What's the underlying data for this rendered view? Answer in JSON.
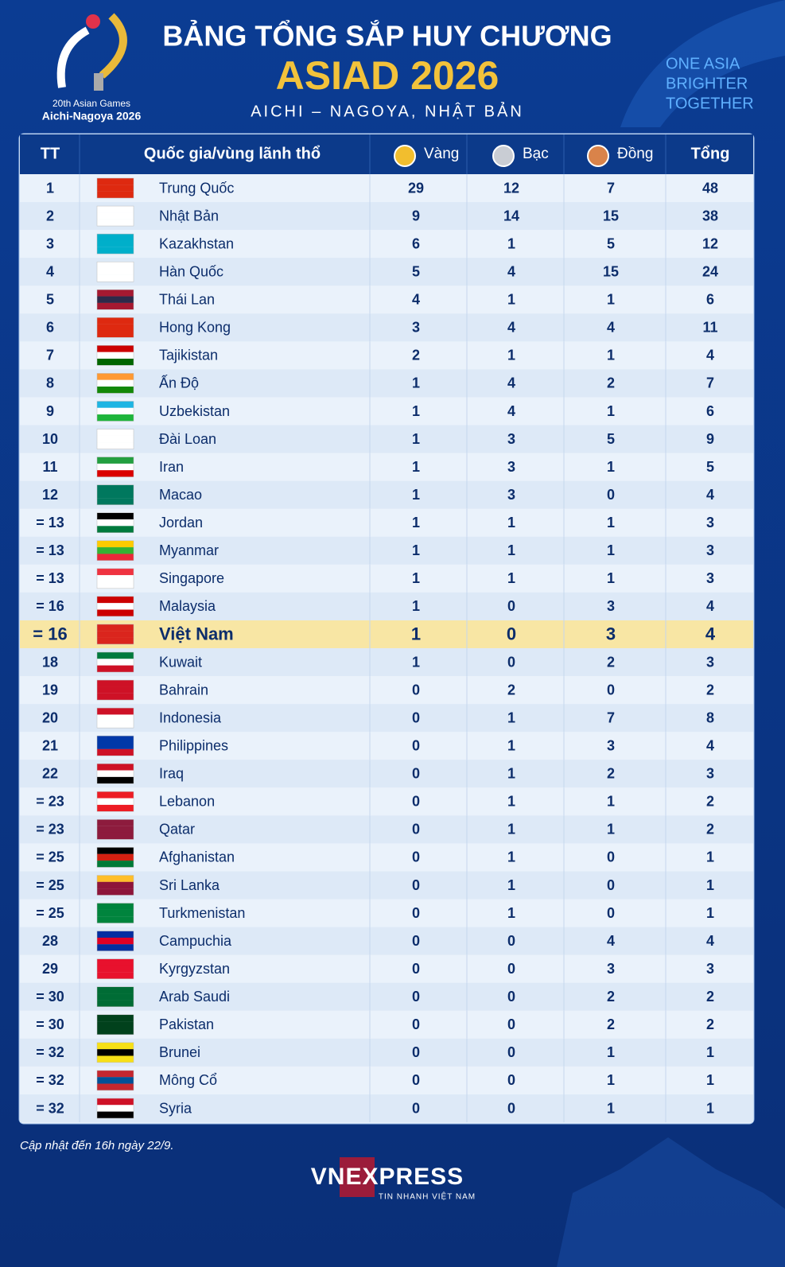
{
  "header": {
    "logo_line1": "20th Asian Games",
    "logo_line2": "Aichi-Nagoya 2026",
    "title": "BẢNG TỔNG SẮP HUY CHƯƠNG",
    "event": "ASIAD 2026",
    "location": "AICHI – NAGOYA, NHẬT BẢN",
    "slogan": [
      "ONE ASIA",
      "BRIGHTER",
      "TOGETHER"
    ]
  },
  "table": {
    "columns": [
      "TT",
      "Quốc gia/vùng lãnh thổ",
      "Vàng",
      "Bạc",
      "Đồng",
      "Tổng"
    ],
    "rows": [
      [
        "1",
        "Trung Quốc",
        29,
        12,
        7,
        48
      ],
      [
        "2",
        "Nhật Bản",
        9,
        14,
        15,
        38
      ],
      [
        "3",
        "Kazakhstan",
        6,
        1,
        5,
        12
      ],
      [
        "4",
        "Hàn Quốc",
        5,
        4,
        15,
        24
      ],
      [
        "5",
        "Thái Lan",
        4,
        1,
        1,
        6
      ],
      [
        "6",
        "Hong Kong",
        3,
        4,
        4,
        11
      ],
      [
        "7",
        "Tajikistan",
        2,
        1,
        1,
        4
      ],
      [
        "8",
        "Ấn Độ",
        1,
        4,
        2,
        7
      ],
      [
        "9",
        "Uzbekistan",
        1,
        4,
        1,
        6
      ],
      [
        "10",
        "Đài Loan",
        1,
        3,
        5,
        9
      ],
      [
        "11",
        "Iran",
        1,
        3,
        1,
        5
      ],
      [
        "12",
        "Macao",
        1,
        3,
        0,
        4
      ],
      [
        "= 13",
        "Jordan",
        1,
        1,
        1,
        3
      ],
      [
        "= 13",
        "Myanmar",
        1,
        1,
        1,
        3
      ],
      [
        "= 13",
        "Singapore",
        1,
        1,
        1,
        3
      ],
      [
        "= 16",
        "Malaysia",
        1,
        0,
        3,
        4
      ],
      [
        "= 16",
        "Việt Nam",
        1,
        0,
        3,
        4
      ],
      [
        "18",
        "Kuwait",
        1,
        0,
        2,
        3
      ],
      [
        "19",
        "Bahrain",
        0,
        2,
        0,
        2
      ],
      [
        "20",
        "Indonesia",
        0,
        1,
        7,
        8
      ],
      [
        "21",
        "Philippines",
        0,
        1,
        3,
        4
      ],
      [
        "22",
        "Iraq",
        0,
        1,
        2,
        3
      ],
      [
        "= 23",
        "Lebanon",
        0,
        1,
        1,
        2
      ],
      [
        "= 23",
        "Qatar",
        0,
        1,
        1,
        2
      ],
      [
        "= 25",
        "Afghanistan",
        0,
        1,
        0,
        1
      ],
      [
        "= 25",
        "Sri Lanka",
        0,
        1,
        0,
        1
      ],
      [
        "= 25",
        "Turkmenistan",
        0,
        1,
        0,
        1
      ],
      [
        "28",
        "Campuchia",
        0,
        0,
        4,
        4
      ],
      [
        "29",
        "Kyrgyzstan",
        0,
        0,
        3,
        3
      ],
      [
        "= 30",
        "Arab Saudi",
        0,
        0,
        2,
        2
      ],
      [
        "= 30",
        "Pakistan",
        0,
        0,
        2,
        2
      ],
      [
        "= 32",
        "Brunei",
        0,
        0,
        1,
        1
      ],
      [
        "= 32",
        "Mông Cổ",
        0,
        0,
        1,
        1
      ],
      [
        "= 32",
        "Syria",
        0,
        0,
        1,
        1
      ]
    ]
  },
  "footer": {
    "note": "Cập nhật đến 16h ngày 22/9.",
    "brand": "VNEXPRESS",
    "tagline": "TIN NHANH VIỆT NAM"
  }
}
